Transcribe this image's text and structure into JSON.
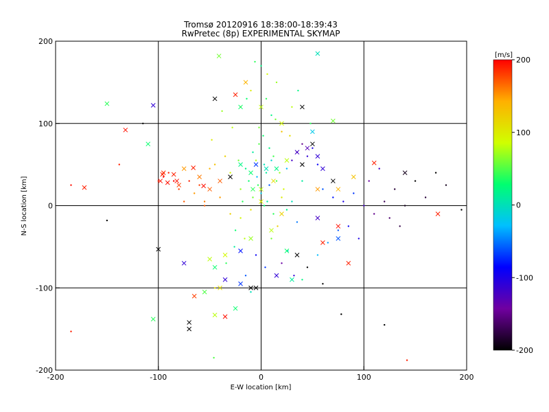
{
  "chart_data": {
    "type": "scatter",
    "title": "Tromsø 20120916 18:38:00-18:39:43",
    "subtitle": "RwPretec (8p) EXPERIMENTAL SKYMAP",
    "xlabel": "E-W location [km]",
    "ylabel": "N-S location [km]",
    "xlim": [
      -200,
      200
    ],
    "ylim": [
      -200,
      200
    ],
    "xticks": [
      "-200",
      "-100",
      "0",
      "100",
      "200"
    ],
    "yticks": [
      "-200",
      "-100",
      "0",
      "100",
      "200"
    ],
    "grid": true,
    "colorbar": {
      "label": "[m/s]",
      "range": [
        -200,
        200
      ],
      "ticks": [
        "-200",
        "-100",
        "0",
        "100",
        "200"
      ],
      "placement": "right",
      "colors": [
        "#000000",
        "#7000a0",
        "#0000ff",
        "#00c0ff",
        "#00ff70",
        "#d0ff00",
        "#ffb000",
        "#ff0000"
      ]
    },
    "points_dot": [
      [
        5,
        40,
        10
      ],
      [
        -3,
        25,
        40
      ],
      [
        10,
        55,
        -10
      ],
      [
        -8,
        10,
        60
      ],
      [
        3,
        0,
        30
      ],
      [
        15,
        30,
        50
      ],
      [
        -15,
        45,
        20
      ],
      [
        0,
        15,
        -20
      ],
      [
        8,
        70,
        20
      ],
      [
        -5,
        55,
        80
      ],
      [
        20,
        10,
        100
      ],
      [
        -20,
        20,
        70
      ],
      [
        12,
        -10,
        40
      ],
      [
        -10,
        -5,
        110
      ],
      [
        25,
        45,
        -30
      ],
      [
        -30,
        40,
        90
      ],
      [
        2,
        85,
        30
      ],
      [
        -2,
        95,
        60
      ],
      [
        10,
        110,
        20
      ],
      [
        5,
        130,
        40
      ],
      [
        -10,
        140,
        100
      ],
      [
        15,
        150,
        70
      ],
      [
        0,
        170,
        20
      ],
      [
        -20,
        120,
        140
      ],
      [
        30,
        120,
        80
      ],
      [
        20,
        90,
        130
      ],
      [
        -35,
        60,
        120
      ],
      [
        40,
        30,
        10
      ],
      [
        -40,
        10,
        150
      ],
      [
        35,
        -20,
        -50
      ],
      [
        -25,
        -30,
        30
      ],
      [
        10,
        -40,
        60
      ],
      [
        -5,
        -60,
        -90
      ],
      [
        20,
        -70,
        -140
      ],
      [
        -15,
        -85,
        -60
      ],
      [
        40,
        -90,
        20
      ],
      [
        -45,
        -100,
        110
      ],
      [
        -50,
        45,
        140
      ],
      [
        -60,
        25,
        180
      ],
      [
        -70,
        30,
        190
      ],
      [
        -85,
        30,
        200
      ],
      [
        -90,
        40,
        190
      ],
      [
        -80,
        20,
        180
      ],
      [
        -65,
        15,
        150
      ],
      [
        -55,
        5,
        160
      ],
      [
        -75,
        5,
        170
      ],
      [
        -95,
        35,
        200
      ],
      [
        -100,
        30,
        190
      ],
      [
        -45,
        50,
        130
      ],
      [
        45,
        60,
        -110
      ],
      [
        35,
        65,
        -130
      ],
      [
        50,
        70,
        -100
      ],
      [
        30,
        55,
        -120
      ],
      [
        55,
        50,
        -90
      ],
      [
        40,
        75,
        -150
      ],
      [
        60,
        20,
        -60
      ],
      [
        70,
        10,
        -80
      ],
      [
        80,
        5,
        -100
      ],
      [
        90,
        15,
        -70
      ],
      [
        100,
        0,
        -120
      ],
      [
        110,
        -10,
        -150
      ],
      [
        120,
        5,
        -170
      ],
      [
        130,
        20,
        -180
      ],
      [
        140,
        0,
        -190
      ],
      [
        150,
        30,
        -200
      ],
      [
        160,
        10,
        -180
      ],
      [
        170,
        40,
        -200
      ],
      [
        180,
        25,
        -190
      ],
      [
        195,
        -5,
        -200
      ],
      [
        105,
        30,
        -140
      ],
      [
        115,
        45,
        -120
      ],
      [
        125,
        -15,
        -160
      ],
      [
        135,
        -25,
        -175
      ],
      [
        85,
        -25,
        -90
      ],
      [
        95,
        -40,
        -100
      ],
      [
        75,
        -30,
        -60
      ],
      [
        65,
        -45,
        -40
      ],
      [
        55,
        -60,
        -30
      ],
      [
        45,
        -75,
        -200
      ],
      [
        60,
        -95,
        -200
      ],
      [
        78,
        -132,
        -200
      ],
      [
        120,
        -145,
        -200
      ],
      [
        142,
        -188,
        190
      ],
      [
        -185,
        -153,
        190
      ],
      [
        -115,
        100,
        -200
      ],
      [
        -150,
        -18,
        -200
      ],
      [
        -138,
        50,
        190
      ],
      [
        -185,
        25,
        195
      ],
      [
        -46,
        -185,
        50
      ],
      [
        -55,
        0,
        170
      ],
      [
        -30,
        -10,
        120
      ],
      [
        -20,
        -15,
        90
      ],
      [
        25,
        -5,
        20
      ],
      [
        30,
        5,
        0
      ],
      [
        8,
        25,
        -60
      ],
      [
        -12,
        30,
        30
      ],
      [
        18,
        40,
        70
      ],
      [
        -8,
        65,
        10
      ],
      [
        12,
        60,
        45
      ],
      [
        -22,
        55,
        60
      ],
      [
        22,
        20,
        90
      ],
      [
        -18,
        5,
        40
      ],
      [
        6,
        5,
        10
      ],
      [
        -4,
        35,
        -30
      ],
      [
        3,
        50,
        0
      ],
      [
        -2,
        75,
        50
      ],
      [
        28,
        85,
        110
      ],
      [
        -28,
        95,
        80
      ],
      [
        14,
        105,
        60
      ],
      [
        -14,
        130,
        30
      ],
      [
        6,
        160,
        90
      ],
      [
        -6,
        175,
        40
      ],
      [
        36,
        140,
        20
      ],
      [
        -38,
        115,
        70
      ],
      [
        48,
        100,
        40
      ],
      [
        -48,
        80,
        100
      ],
      [
        16,
        -25,
        120
      ],
      [
        -16,
        -40,
        80
      ],
      [
        26,
        -55,
        -20
      ],
      [
        -26,
        -50,
        10
      ],
      [
        4,
        -75,
        -70
      ],
      [
        -34,
        -70,
        40
      ],
      [
        32,
        -85,
        -110
      ],
      [
        -10,
        -105,
        0
      ]
    ],
    "points_cross": [
      [
        -41,
        182,
        60
      ],
      [
        -25,
        135,
        190
      ],
      [
        -45,
        130,
        -200
      ],
      [
        -105,
        122,
        -110
      ],
      [
        -150,
        124,
        40
      ],
      [
        -132,
        92,
        195
      ],
      [
        -110,
        75,
        30
      ],
      [
        -172,
        22,
        190
      ],
      [
        -95,
        40,
        185
      ],
      [
        -85,
        38,
        190
      ],
      [
        -98,
        30,
        195
      ],
      [
        -80,
        25,
        180
      ],
      [
        -75,
        45,
        150
      ],
      [
        -60,
        35,
        160
      ],
      [
        -50,
        20,
        170
      ],
      [
        -40,
        30,
        170
      ],
      [
        -30,
        35,
        -200
      ],
      [
        -20,
        50,
        20
      ],
      [
        -5,
        50,
        -70
      ],
      [
        5,
        45,
        0
      ],
      [
        15,
        45,
        20
      ],
      [
        -10,
        40,
        30
      ],
      [
        0,
        20,
        80
      ],
      [
        0,
        5,
        100
      ],
      [
        -8,
        20,
        40
      ],
      [
        12,
        30,
        110
      ],
      [
        25,
        55,
        80
      ],
      [
        35,
        65,
        -120
      ],
      [
        45,
        70,
        -130
      ],
      [
        50,
        75,
        -200
      ],
      [
        55,
        60,
        -110
      ],
      [
        40,
        50,
        -200
      ],
      [
        60,
        45,
        -110
      ],
      [
        70,
        30,
        -200
      ],
      [
        75,
        20,
        140
      ],
      [
        90,
        35,
        130
      ],
      [
        110,
        52,
        190
      ],
      [
        140,
        40,
        -190
      ],
      [
        172,
        -10,
        190
      ],
      [
        40,
        120,
        -200
      ],
      [
        0,
        120,
        80
      ],
      [
        -20,
        120,
        30
      ],
      [
        20,
        100,
        90
      ],
      [
        -15,
        150,
        140
      ],
      [
        55,
        185,
        0
      ],
      [
        70,
        103,
        60
      ],
      [
        50,
        90,
        -20
      ],
      [
        55,
        20,
        150
      ],
      [
        20,
        -10,
        120
      ],
      [
        10,
        -30,
        80
      ],
      [
        -10,
        -40,
        70
      ],
      [
        -20,
        -55,
        -80
      ],
      [
        -35,
        -60,
        90
      ],
      [
        -50,
        -65,
        80
      ],
      [
        -45,
        -75,
        30
      ],
      [
        -35,
        -90,
        -110
      ],
      [
        -20,
        -95,
        -70
      ],
      [
        -5,
        -100,
        -200
      ],
      [
        15,
        -85,
        -110
      ],
      [
        30,
        -90,
        10
      ],
      [
        35,
        -60,
        -200
      ],
      [
        25,
        -55,
        30
      ],
      [
        60,
        -45,
        190
      ],
      [
        75,
        -40,
        -60
      ],
      [
        85,
        -70,
        190
      ],
      [
        -100,
        -53,
        -200
      ],
      [
        -75,
        -70,
        -110
      ],
      [
        -65,
        -110,
        180
      ],
      [
        -40,
        -100,
        110
      ],
      [
        -55,
        -105,
        50
      ],
      [
        -45,
        -133,
        80
      ],
      [
        -35,
        -135,
        195
      ],
      [
        -25,
        -125,
        30
      ],
      [
        -105,
        -138,
        40
      ],
      [
        -70,
        -142,
        -200
      ],
      [
        -70,
        -150,
        -200
      ],
      [
        55,
        -15,
        -120
      ],
      [
        75,
        -25,
        195
      ],
      [
        -10,
        -100,
        -200
      ],
      [
        -56,
        24,
        195
      ],
      [
        -66,
        46,
        190
      ],
      [
        -91,
        28,
        195
      ],
      [
        -96,
        38,
        190
      ],
      [
        -82,
        30,
        195
      ]
    ]
  }
}
